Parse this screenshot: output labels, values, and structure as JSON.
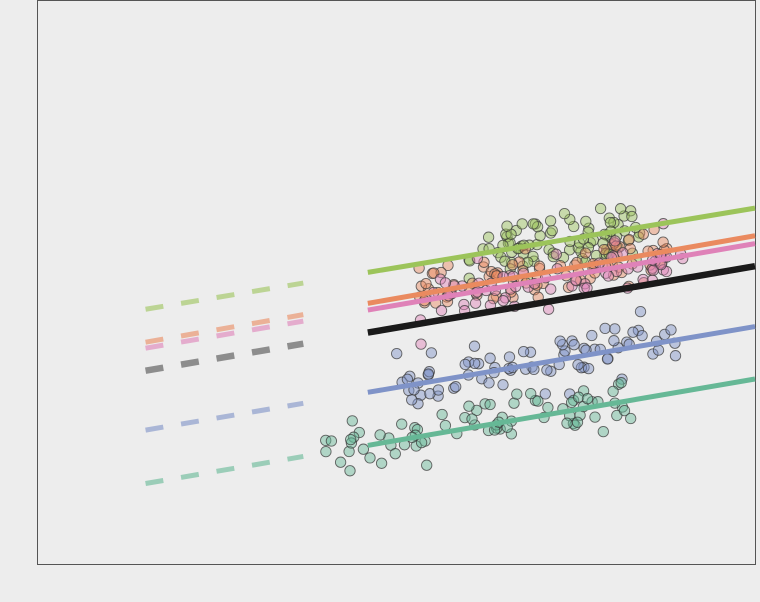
{
  "chart_data": {
    "type": "scatter",
    "title": "",
    "xlabel": "",
    "ylabel": "",
    "xlim": [
      0,
      10
    ],
    "ylim": [
      0,
      10
    ],
    "grid": false,
    "legend": "none",
    "x_observed_range": [
      4.6,
      10
    ],
    "background": "#ededed",
    "series": [
      {
        "color": "#9cc45a",
        "intercept": 4.2,
        "slope": 0.211,
        "spread": 0.45,
        "x_range": [
          6.0,
          8.4
        ],
        "count": 90
      },
      {
        "color": "#ea8a5f",
        "intercept": 3.6,
        "slope": 0.222,
        "spread": 0.4,
        "x_range": [
          5.3,
          8.8
        ],
        "count": 90
      },
      {
        "color": "#df82b8",
        "intercept": 3.5,
        "slope": 0.218,
        "spread": 0.4,
        "x_range": [
          5.3,
          9.0
        ],
        "count": 70
      },
      {
        "color": "#7f93c8",
        "intercept": 2.05,
        "slope": 0.216,
        "spread": 0.4,
        "x_range": [
          5.0,
          9.0
        ],
        "count": 80
      },
      {
        "color": "#66b896",
        "intercept": 1.1,
        "slope": 0.218,
        "spread": 0.4,
        "x_range": [
          4.0,
          8.4
        ],
        "count": 80
      }
    ],
    "average_line": {
      "color": "#1a1a1a",
      "intercept": 3.1,
      "slope": 0.218
    },
    "extrapolation_x_range": [
      1.5,
      3.7
    ]
  }
}
